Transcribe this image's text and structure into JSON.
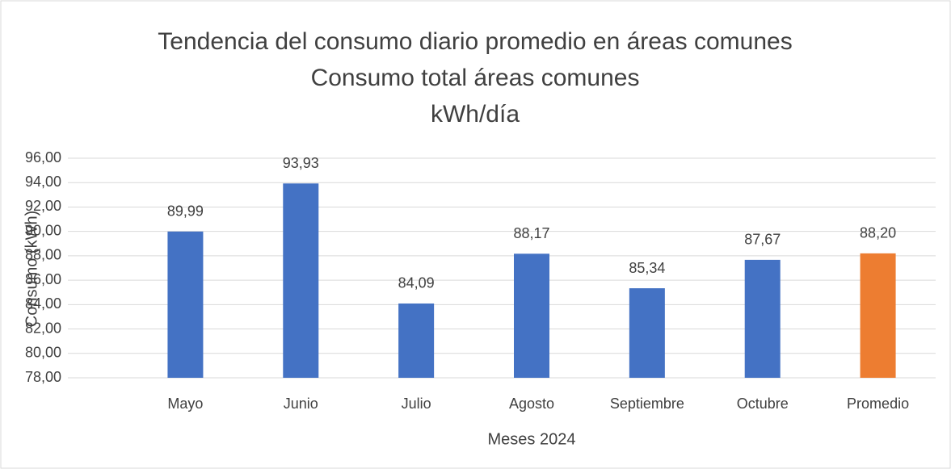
{
  "chart_data": {
    "type": "bar",
    "title": [
      "Tendencia del consumo diario promedio en áreas comunes",
      "Consumo total áreas comunes",
      "kWh/día"
    ],
    "x_label": "Meses 2024",
    "y_label": "Consumo (kWh)",
    "categories": [
      "Mayo",
      "Junio",
      "Julio",
      "Agosto",
      "Septiembre",
      "Octubre",
      "Promedio"
    ],
    "values": [
      89.99,
      93.93,
      84.09,
      88.17,
      85.34,
      87.67,
      88.2
    ],
    "value_labels": [
      "89,99",
      "93,93",
      "84,09",
      "88,17",
      "85,34",
      "87,67",
      "88,20"
    ],
    "colors": [
      "#4472c4",
      "#4472c4",
      "#4472c4",
      "#4472c4",
      "#4472c4",
      "#4472c4",
      "#ed7d31"
    ],
    "ylim": [
      78,
      96
    ],
    "yticks": [
      {
        "value": 78,
        "label": "78,00"
      },
      {
        "value": 80,
        "label": "80,00"
      },
      {
        "value": 82,
        "label": "82,00"
      },
      {
        "value": 84,
        "label": "84,00"
      },
      {
        "value": 86,
        "label": "86,00"
      },
      {
        "value": 88,
        "label": "88,00"
      },
      {
        "value": 90,
        "label": "90,00"
      },
      {
        "value": 92,
        "label": "92,00"
      },
      {
        "value": 94,
        "label": "94,00"
      },
      {
        "value": 96,
        "label": "96,00"
      }
    ],
    "grid": true
  }
}
